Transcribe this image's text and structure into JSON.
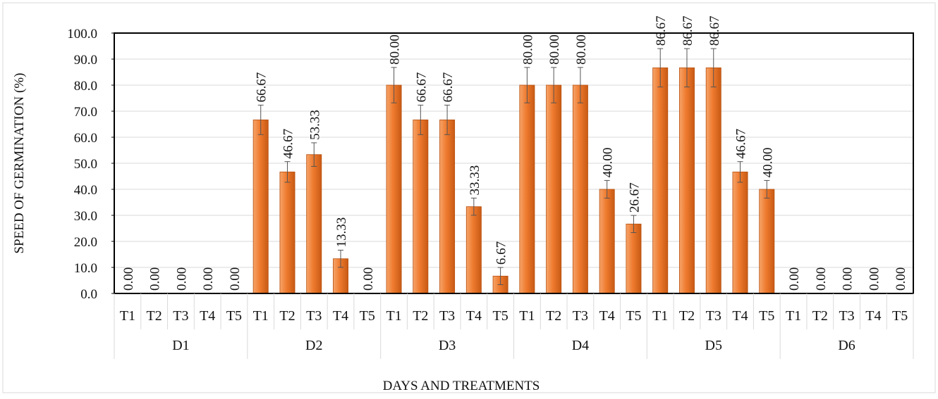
{
  "chart_data": {
    "type": "bar",
    "title": "",
    "xlabel": "DAYS AND TREATMENTS",
    "ylabel": "SPEED OF GERMINATION (%)",
    "ylim": [
      0,
      100
    ],
    "y_ticks": [
      "0.0",
      "10.0",
      "20.0",
      "30.0",
      "40.0",
      "50.0",
      "60.0",
      "70.0",
      "80.0",
      "90.0",
      "100.0"
    ],
    "grid": true,
    "legend": "none",
    "bar_color": "#ee7a2e",
    "groups": [
      {
        "label": "D1",
        "categories": [
          "T1",
          "T2",
          "T3",
          "T4",
          "T5"
        ],
        "values": [
          0,
          0,
          0,
          0,
          0
        ],
        "labels": [
          "0.00",
          "0.00",
          "0.00",
          "0.00",
          "0.00"
        ]
      },
      {
        "label": "D2",
        "categories": [
          "T1",
          "T2",
          "T3",
          "T4",
          "T5"
        ],
        "values": [
          66.67,
          46.67,
          53.33,
          13.33,
          0
        ],
        "labels": [
          "66.67",
          "46.67",
          "53.33",
          "13.33",
          "0.00"
        ]
      },
      {
        "label": "D3",
        "categories": [
          "T1",
          "T2",
          "T3",
          "T4",
          "T5"
        ],
        "values": [
          80.0,
          66.67,
          66.67,
          33.33,
          6.67
        ],
        "labels": [
          "80.00",
          "66.67",
          "66.67",
          "33.33",
          "6.67"
        ]
      },
      {
        "label": "D4",
        "categories": [
          "T1",
          "T2",
          "T3",
          "T4",
          "T5"
        ],
        "values": [
          80.0,
          80.0,
          80.0,
          40.0,
          26.67
        ],
        "labels": [
          "80.00",
          "80.00",
          "80.00",
          "40.00",
          "26.67"
        ]
      },
      {
        "label": "D5",
        "categories": [
          "T1",
          "T2",
          "T3",
          "T4",
          "T5"
        ],
        "values": [
          86.67,
          86.67,
          86.67,
          46.67,
          40.0
        ],
        "labels": [
          "86.67",
          "86.67",
          "86.67",
          "46.67",
          "40.00"
        ]
      },
      {
        "label": "D6",
        "categories": [
          "T1",
          "T2",
          "T3",
          "T4",
          "T5"
        ],
        "values": [
          0,
          0,
          0,
          0,
          0
        ],
        "labels": [
          "0.00",
          "0.00",
          "0.00",
          "0.00",
          "0.00"
        ]
      }
    ]
  }
}
